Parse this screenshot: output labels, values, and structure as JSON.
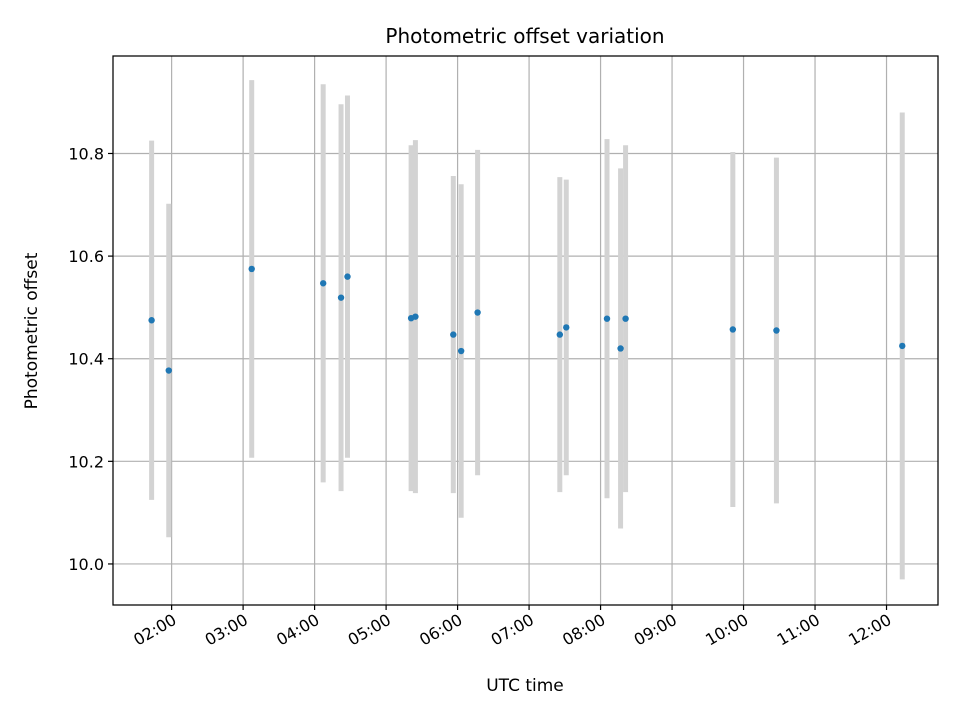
{
  "chart_data": {
    "type": "scatter",
    "title": "Photometric offset variation",
    "xlabel": "UTC time",
    "ylabel": "Photometric offset",
    "x_tick_labels": [
      "02:00",
      "03:00",
      "04:00",
      "05:00",
      "06:00",
      "07:00",
      "08:00",
      "09:00",
      "10:00",
      "11:00",
      "12:00"
    ],
    "x_tick_hours": [
      2,
      3,
      4,
      5,
      6,
      7,
      8,
      9,
      10,
      11,
      12
    ],
    "y_tick_labels": [
      "10.0",
      "10.2",
      "10.4",
      "10.6",
      "10.8"
    ],
    "y_tick_values": [
      10.0,
      10.2,
      10.4,
      10.6,
      10.8
    ],
    "xlim_hours": [
      1.18,
      12.72
    ],
    "ylim": [
      9.92,
      10.99
    ],
    "grid": true,
    "colors": {
      "point": "#1f77b4",
      "errorbar": "#d3d3d3",
      "grid": "#b0b0b0"
    },
    "points": [
      {
        "hour": 1.72,
        "y": 10.475,
        "y_low": 10.125,
        "y_high": 10.825
      },
      {
        "hour": 1.96,
        "y": 10.377,
        "y_low": 10.052,
        "y_high": 10.702
      },
      {
        "hour": 3.12,
        "y": 10.575,
        "y_low": 10.207,
        "y_high": 10.943
      },
      {
        "hour": 4.12,
        "y": 10.547,
        "y_low": 10.159,
        "y_high": 10.935
      },
      {
        "hour": 4.37,
        "y": 10.519,
        "y_low": 10.142,
        "y_high": 10.896
      },
      {
        "hour": 4.46,
        "y": 10.56,
        "y_low": 10.207,
        "y_high": 10.913
      },
      {
        "hour": 5.35,
        "y": 10.479,
        "y_low": 10.142,
        "y_high": 10.816
      },
      {
        "hour": 5.41,
        "y": 10.482,
        "y_low": 10.138,
        "y_high": 10.826
      },
      {
        "hour": 5.94,
        "y": 10.447,
        "y_low": 10.138,
        "y_high": 10.756
      },
      {
        "hour": 6.05,
        "y": 10.415,
        "y_low": 10.09,
        "y_high": 10.74
      },
      {
        "hour": 6.28,
        "y": 10.49,
        "y_low": 10.173,
        "y_high": 10.807
      },
      {
        "hour": 7.43,
        "y": 10.447,
        "y_low": 10.14,
        "y_high": 10.754
      },
      {
        "hour": 7.52,
        "y": 10.461,
        "y_low": 10.173,
        "y_high": 10.749
      },
      {
        "hour": 8.09,
        "y": 10.478,
        "y_low": 10.128,
        "y_high": 10.828
      },
      {
        "hour": 8.28,
        "y": 10.42,
        "y_low": 10.069,
        "y_high": 10.771
      },
      {
        "hour": 8.35,
        "y": 10.478,
        "y_low": 10.14,
        "y_high": 10.816
      },
      {
        "hour": 9.85,
        "y": 10.457,
        "y_low": 10.111,
        "y_high": 10.803
      },
      {
        "hour": 10.46,
        "y": 10.455,
        "y_low": 10.118,
        "y_high": 10.792
      },
      {
        "hour": 12.22,
        "y": 10.425,
        "y_low": 9.97,
        "y_high": 10.88
      }
    ]
  }
}
